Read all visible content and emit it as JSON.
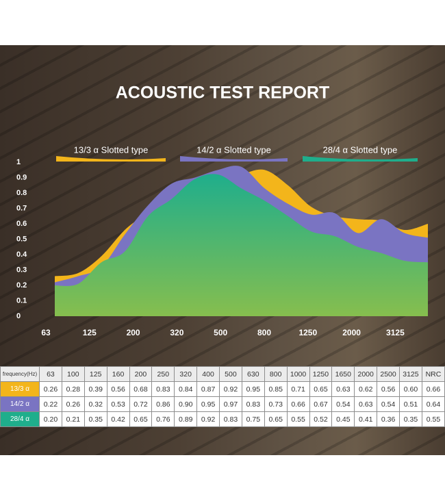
{
  "chart_data": {
    "type": "area",
    "title": "ACOUSTIC TEST REPORT",
    "categories": [
      "63",
      null,
      "125",
      null,
      "200",
      null,
      "320",
      null,
      "500",
      null,
      "800",
      null,
      "1250",
      null,
      "2000",
      null,
      "3125"
    ],
    "series": [
      {
        "name": "13/3 α  Slotted type",
        "color": "#f3b51b",
        "values": [
          0.26,
          0.28,
          0.39,
          0.56,
          0.68,
          0.83,
          0.84,
          0.87,
          0.92,
          0.95,
          0.85,
          0.71,
          0.65,
          0.63,
          0.62,
          0.56,
          0.6
        ]
      },
      {
        "name": "14/2 α  Slotted type",
        "color": "#7a74c2",
        "values": [
          0.22,
          0.26,
          0.32,
          0.53,
          0.72,
          0.86,
          0.9,
          0.95,
          0.97,
          0.83,
          0.73,
          0.66,
          0.67,
          0.54,
          0.63,
          0.54,
          0.51
        ]
      },
      {
        "name": "28/4 α  Slotted type",
        "color": "#1fae8c",
        "values": [
          0.2,
          0.21,
          0.35,
          0.42,
          0.65,
          0.76,
          0.89,
          0.92,
          0.83,
          0.75,
          0.65,
          0.55,
          0.52,
          0.45,
          0.41,
          0.36,
          0.35
        ]
      }
    ],
    "ylim": [
      0,
      1
    ],
    "yticks": [
      0,
      0.1,
      0.2,
      0.3,
      0.4,
      0.5,
      0.6,
      0.7,
      0.8,
      0.9,
      1
    ]
  },
  "table": {
    "header": [
      "frequency(Hz)",
      "63",
      "100",
      "125",
      "160",
      "200",
      "250",
      "320",
      "400",
      "500",
      "630",
      "800",
      "1000",
      "1250",
      "1650",
      "2000",
      "2500",
      "3125",
      "NRC"
    ],
    "rows": [
      [
        "13/3 α",
        "0.26",
        "0.28",
        "0.39",
        "0.56",
        "0.68",
        "0.83",
        "0.84",
        "0.87",
        "0.92",
        "0.95",
        "0.85",
        "0.71",
        "0.65",
        "0.63",
        "0.62",
        "0.56",
        "0.60",
        "0.66"
      ],
      [
        "14/2 α",
        "0.22",
        "0.26",
        "0.32",
        "0.53",
        "0.72",
        "0.86",
        "0.90",
        "0.95",
        "0.97",
        "0.83",
        "0.73",
        "0.66",
        "0.67",
        "0.54",
        "0.63",
        "0.54",
        "0.51",
        "0.64"
      ],
      [
        "28/4 α",
        "0.20",
        "0.21",
        "0.35",
        "0.42",
        "0.65",
        "0.76",
        "0.89",
        "0.92",
        "0.83",
        "0.75",
        "0.65",
        "0.55",
        "0.52",
        "0.45",
        "0.41",
        "0.36",
        "0.35",
        "0.55"
      ]
    ]
  }
}
